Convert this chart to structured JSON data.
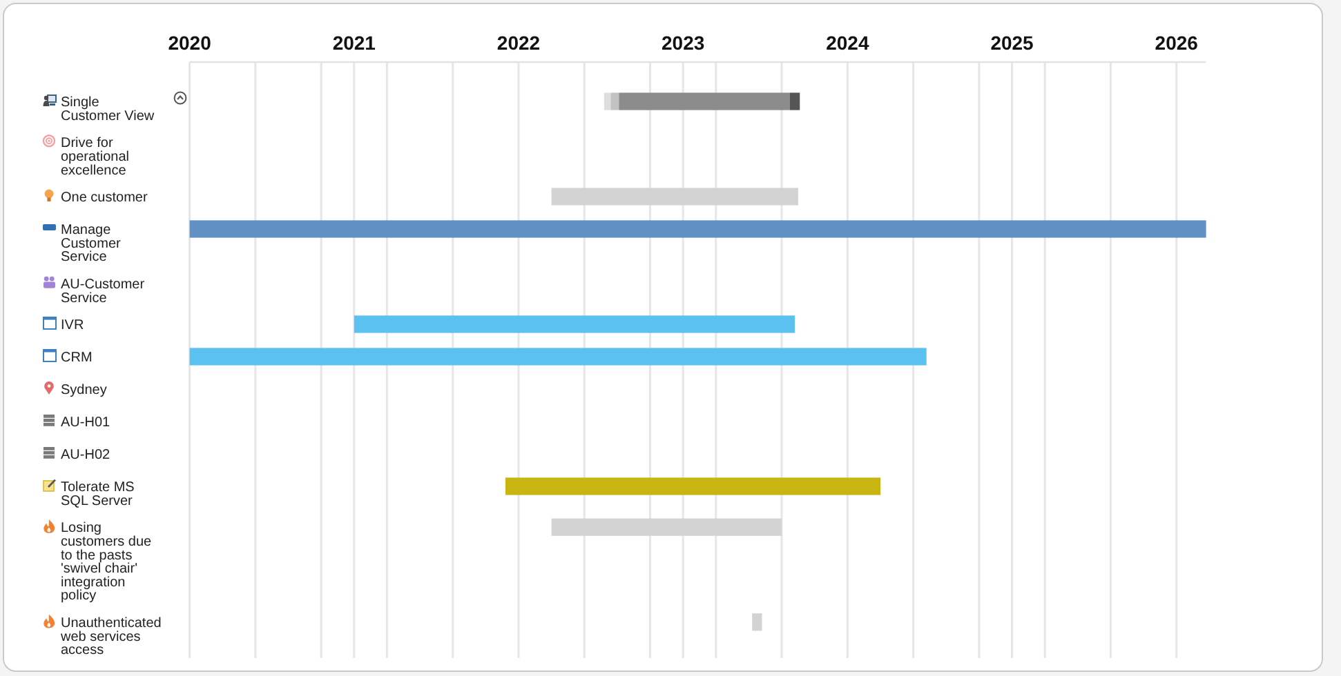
{
  "chart_data": {
    "type": "bar",
    "orientation": "horizontal",
    "categories": [
      "Single Customer View",
      "Drive for operational excellence",
      "One customer",
      "Manage Customer Service",
      "AU-Customer Service",
      "IVR",
      "CRM",
      "Sydney",
      "AU-H01",
      "AU-H02",
      "Tolerate MS SQL Server",
      "Losing customers due to the pasts 'swivel chair' integration policy",
      "Unauthenticated web services access"
    ],
    "series": [
      {
        "colors": [
          "#dedede",
          null,
          "#d3d3d3",
          "#6090c4",
          null,
          "#5ac1f1",
          "#5ac1f1",
          null,
          null,
          null,
          "#c8b512",
          "#d3d3d3",
          "#d3d3d3"
        ],
        "base": [
          2022.52,
          null,
          2022.2,
          2020,
          null,
          2021,
          2020,
          null,
          null,
          null,
          2021.92,
          2022.2,
          2023.42
        ],
        "values": [
          0.04,
          null,
          1.5,
          6.18,
          null,
          2.68,
          4.48,
          null,
          null,
          null,
          2.28,
          1.4,
          0.06
        ]
      },
      {
        "color": "#c2c2c2",
        "base": [
          2022.56,
          null,
          null,
          null,
          null,
          null,
          null,
          null,
          null,
          null,
          null,
          null,
          null
        ],
        "values": [
          0.05,
          null,
          null,
          null,
          null,
          null,
          null,
          null,
          null,
          null,
          null,
          null,
          null
        ]
      },
      {
        "color": "#8c8c8c",
        "base": [
          2022.61,
          null,
          null,
          null,
          null,
          null,
          null,
          null,
          null,
          null,
          null,
          null,
          null
        ],
        "values": [
          1.04,
          null,
          null,
          null,
          null,
          null,
          null,
          null,
          null,
          null,
          null,
          null,
          null
        ]
      },
      {
        "color": "#555555",
        "base": [
          2023.65,
          null,
          null,
          null,
          null,
          null,
          null,
          null,
          null,
          null,
          null,
          null,
          null
        ],
        "values": [
          0.06,
          null,
          null,
          null,
          null,
          null,
          null,
          null,
          null,
          null,
          null,
          null,
          null
        ]
      }
    ],
    "xlim": [
      2020,
      2026.18
    ],
    "xticks": [
      2020,
      {
        "value": 2020.4,
        "label": null
      },
      {
        "value": 2020.8,
        "label": null
      },
      2021,
      {
        "value": 2021.2,
        "label": null
      },
      {
        "value": 2021.6,
        "label": null
      },
      2022,
      {
        "value": 2022.4,
        "label": null
      },
      {
        "value": 2022.8,
        "label": null
      },
      2023,
      {
        "value": 2023.2,
        "label": null
      },
      {
        "value": 2023.6,
        "label": null
      },
      2024,
      {
        "value": 2024.4,
        "label": null
      },
      {
        "value": 2024.8,
        "label": null
      },
      2025,
      {
        "value": 2025.2,
        "label": null
      },
      {
        "value": 2025.6,
        "label": null
      },
      2026
    ],
    "grid": "x"
  }
}
